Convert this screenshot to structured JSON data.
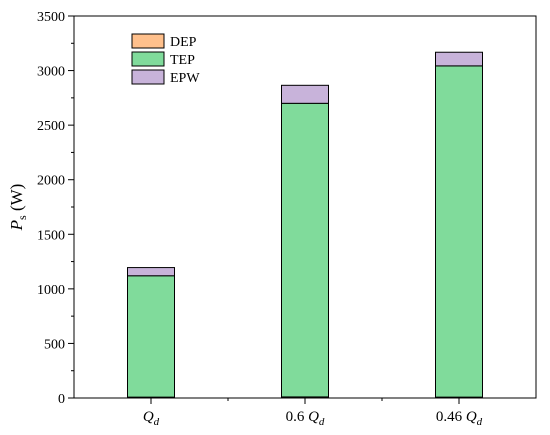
{
  "chart_data": {
    "type": "bar",
    "stacked": true,
    "categories": [
      {
        "main": "Q",
        "sub": "d",
        "prefix": ""
      },
      {
        "main": "Q",
        "sub": "d",
        "prefix": "0.6 "
      },
      {
        "main": "Q",
        "sub": "d",
        "prefix": "0.46 "
      }
    ],
    "series": [
      {
        "name": "DEP",
        "color": "#FFC08C",
        "values": [
          8,
          10,
          8
        ]
      },
      {
        "name": "TEP",
        "color": "#80DB9B",
        "values": [
          1112,
          2690,
          3035
        ]
      },
      {
        "name": "EPW",
        "color": "#C8B3DA",
        "values": [
          75,
          165,
          125
        ]
      }
    ],
    "ylabel": {
      "main": "P",
      "sub": "s",
      "unit": " (W)"
    },
    "xlabel": "",
    "ylim": [
      0,
      3500
    ],
    "yticks": [
      0,
      500,
      1000,
      1500,
      2000,
      2500,
      3000,
      3500
    ],
    "grid": false,
    "legend_position": "top-left"
  }
}
